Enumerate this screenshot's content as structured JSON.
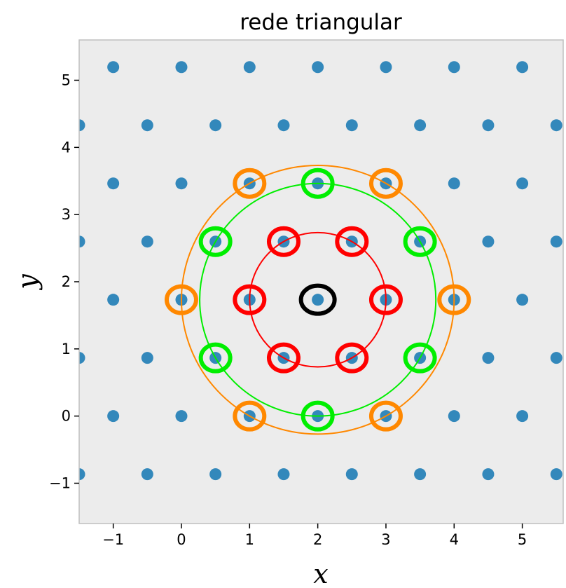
{
  "chart_data": {
    "type": "scatter",
    "title": "rede triangular",
    "xlabel": "x",
    "ylabel": "y",
    "xlim": [
      -1.5,
      5.6
    ],
    "ylim": [
      -1.6,
      5.6
    ],
    "x_ticks": [
      "−1",
      "0",
      "1",
      "2",
      "3",
      "4",
      "5"
    ],
    "y_ticks": [
      "−1",
      "0",
      "1",
      "2",
      "3",
      "4",
      "5"
    ],
    "x_tick_values": [
      -1,
      0,
      1,
      2,
      3,
      4,
      5
    ],
    "y_tick_values": [
      -1,
      0,
      1,
      2,
      3,
      4,
      5
    ],
    "grid": false,
    "background_color": "#ececec",
    "point_color": "#3388bb",
    "lattice_points": [
      {
        "x": -1.5,
        "y": -0.866
      },
      {
        "x": -0.5,
        "y": -0.866
      },
      {
        "x": 0.5,
        "y": -0.866
      },
      {
        "x": 1.5,
        "y": -0.866
      },
      {
        "x": 2.5,
        "y": -0.866
      },
      {
        "x": 3.5,
        "y": -0.866
      },
      {
        "x": 4.5,
        "y": -0.866
      },
      {
        "x": 5.5,
        "y": -0.866
      },
      {
        "x": -1,
        "y": 0
      },
      {
        "x": 0,
        "y": 0
      },
      {
        "x": 1,
        "y": 0
      },
      {
        "x": 2,
        "y": 0
      },
      {
        "x": 3,
        "y": 0
      },
      {
        "x": 4,
        "y": 0
      },
      {
        "x": 5,
        "y": 0
      },
      {
        "x": -1.5,
        "y": 0.866
      },
      {
        "x": -0.5,
        "y": 0.866
      },
      {
        "x": 0.5,
        "y": 0.866
      },
      {
        "x": 1.5,
        "y": 0.866
      },
      {
        "x": 2.5,
        "y": 0.866
      },
      {
        "x": 3.5,
        "y": 0.866
      },
      {
        "x": 4.5,
        "y": 0.866
      },
      {
        "x": 5.5,
        "y": 0.866
      },
      {
        "x": -1,
        "y": 1.732
      },
      {
        "x": 0,
        "y": 1.732
      },
      {
        "x": 1,
        "y": 1.732
      },
      {
        "x": 2,
        "y": 1.732
      },
      {
        "x": 3,
        "y": 1.732
      },
      {
        "x": 4,
        "y": 1.732
      },
      {
        "x": 5,
        "y": 1.732
      },
      {
        "x": -1.5,
        "y": 2.598
      },
      {
        "x": -0.5,
        "y": 2.598
      },
      {
        "x": 0.5,
        "y": 2.598
      },
      {
        "x": 1.5,
        "y": 2.598
      },
      {
        "x": 2.5,
        "y": 2.598
      },
      {
        "x": 3.5,
        "y": 2.598
      },
      {
        "x": 4.5,
        "y": 2.598
      },
      {
        "x": 5.5,
        "y": 2.598
      },
      {
        "x": -1,
        "y": 3.464
      },
      {
        "x": 0,
        "y": 3.464
      },
      {
        "x": 1,
        "y": 3.464
      },
      {
        "x": 2,
        "y": 3.464
      },
      {
        "x": 3,
        "y": 3.464
      },
      {
        "x": 4,
        "y": 3.464
      },
      {
        "x": 5,
        "y": 3.464
      },
      {
        "x": -1.5,
        "y": 4.33
      },
      {
        "x": -0.5,
        "y": 4.33
      },
      {
        "x": 0.5,
        "y": 4.33
      },
      {
        "x": 1.5,
        "y": 4.33
      },
      {
        "x": 2.5,
        "y": 4.33
      },
      {
        "x": 3.5,
        "y": 4.33
      },
      {
        "x": 4.5,
        "y": 4.33
      },
      {
        "x": 5.5,
        "y": 4.33
      },
      {
        "x": -1,
        "y": 5.196
      },
      {
        "x": 0,
        "y": 5.196
      },
      {
        "x": 1,
        "y": 5.196
      },
      {
        "x": 2,
        "y": 5.196
      },
      {
        "x": 3,
        "y": 5.196
      },
      {
        "x": 4,
        "y": 5.196
      },
      {
        "x": 5,
        "y": 5.196
      }
    ],
    "center": {
      "x": 2,
      "y": 1.732,
      "color": "#000000"
    },
    "neighbor_shells": [
      {
        "color": "#ff0000",
        "radius": 1.0,
        "points": [
          {
            "x": 3,
            "y": 1.732
          },
          {
            "x": 2.5,
            "y": 2.598
          },
          {
            "x": 1.5,
            "y": 2.598
          },
          {
            "x": 1,
            "y": 1.732
          },
          {
            "x": 1.5,
            "y": 0.866
          },
          {
            "x": 2.5,
            "y": 0.866
          }
        ]
      },
      {
        "color": "#00ee00",
        "radius": 1.732,
        "points": [
          {
            "x": 3.5,
            "y": 2.598
          },
          {
            "x": 2,
            "y": 3.464
          },
          {
            "x": 0.5,
            "y": 2.598
          },
          {
            "x": 0.5,
            "y": 0.866
          },
          {
            "x": 2,
            "y": 0
          },
          {
            "x": 3.5,
            "y": 0.866
          }
        ]
      },
      {
        "color": "#ff8800",
        "radius": 2.0,
        "points": [
          {
            "x": 4,
            "y": 1.732
          },
          {
            "x": 3,
            "y": 3.464
          },
          {
            "x": 1,
            "y": 3.464
          },
          {
            "x": 0,
            "y": 1.732
          },
          {
            "x": 1,
            "y": 0
          },
          {
            "x": 3,
            "y": 0
          }
        ]
      }
    ]
  }
}
